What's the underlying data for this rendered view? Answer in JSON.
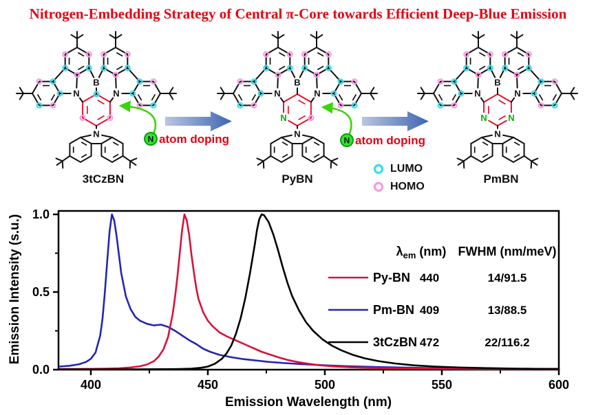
{
  "title": "Nitrogen-Embedding Strategy of Central π-Core towards Efficient Deep-Blue Emission",
  "colors": {
    "title_red": "#e60012",
    "ring_red": "#e8112d",
    "lumo_cyan": "#33dfee",
    "homo_pink": "#f79be0",
    "doped_n_green": "#00b400",
    "arrow_green": "#3bd40a",
    "doping_circle_fill": "#2fe52f",
    "doping_circle_edge": "#0c9b0c",
    "big_arrow_light": "#b9c6e0",
    "big_arrow_dark": "#3e66b3",
    "bond_black": "#111111"
  },
  "scheme": {
    "molecules": [
      {
        "name": "3tCzBN",
        "central_n_count": 0
      },
      {
        "name": "PyBN",
        "central_n_count": 1
      },
      {
        "name": "PmBN",
        "central_n_count": 2
      }
    ],
    "atom_symbols": {
      "boron": "B",
      "nitrogen": "N"
    },
    "doping_label": {
      "atom_symbol": "N",
      "text": "atom doping"
    },
    "orbital_legend": [
      {
        "label": "LUMO",
        "color": "#33dfee"
      },
      {
        "label": "HOMO",
        "color": "#f79be0"
      }
    ]
  },
  "chart_data": {
    "type": "line",
    "title": "",
    "xlabel": "Emission Wavelength (nm)",
    "ylabel": "Emission Intensity (s.u.)",
    "xlim": [
      386,
      600
    ],
    "ylim": [
      0,
      1.0
    ],
    "x_ticks": [
      400,
      450,
      500,
      550,
      600
    ],
    "x_tick_labels": [
      "400",
      "450",
      "500",
      "550",
      "600"
    ],
    "x_minor_ticks": [
      425,
      475,
      525,
      575
    ],
    "y_ticks": [
      0.0,
      0.5,
      1.0
    ],
    "y_tick_labels": [
      "0.0",
      "0.5",
      "1.0"
    ],
    "y_minor_ticks": [
      0.25,
      0.75
    ],
    "grid": false,
    "legend_position": "inside-right",
    "legend": {
      "lambda_symbol": "λ",
      "lambda_sub": "em",
      "lambda_unit": " (nm)",
      "fwhm_header": "FWHM (nm/meV)",
      "rows": [
        {
          "name": "Py-BN",
          "lambda_em": "440",
          "fwhm": "14/91.5",
          "color": "#d9113a"
        },
        {
          "name": "Pm-BN",
          "lambda_em": "409",
          "fwhm": "13/88.5",
          "color": "#2424b4"
        },
        {
          "name": "3tCzBN",
          "lambda_em": "472",
          "fwhm": "22/116.2",
          "color": "#000000"
        }
      ]
    },
    "series": [
      {
        "name": "Pm-BN",
        "color": "#2424b4",
        "peak_nm": 409,
        "fwhm_nm": 13,
        "points": [
          [
            386,
            0.02
          ],
          [
            391,
            0.025
          ],
          [
            395,
            0.035
          ],
          [
            398,
            0.05
          ],
          [
            400,
            0.07
          ],
          [
            402,
            0.11
          ],
          [
            404,
            0.22
          ],
          [
            405,
            0.33
          ],
          [
            406,
            0.5
          ],
          [
            407,
            0.7
          ],
          [
            408,
            0.89
          ],
          [
            409,
            1.0
          ],
          [
            410,
            0.96
          ],
          [
            411,
            0.86
          ],
          [
            412,
            0.74
          ],
          [
            413,
            0.62
          ],
          [
            415,
            0.47
          ],
          [
            417,
            0.39
          ],
          [
            419,
            0.34
          ],
          [
            421,
            0.315
          ],
          [
            424,
            0.295
          ],
          [
            427,
            0.285
          ],
          [
            430,
            0.29
          ],
          [
            433,
            0.275
          ],
          [
            436,
            0.25
          ],
          [
            439,
            0.22
          ],
          [
            442,
            0.19
          ],
          [
            445,
            0.165
          ],
          [
            448,
            0.135
          ],
          [
            451,
            0.115
          ],
          [
            455,
            0.095
          ],
          [
            460,
            0.08
          ],
          [
            465,
            0.068
          ],
          [
            470,
            0.06
          ],
          [
            476,
            0.05
          ],
          [
            483,
            0.042
          ],
          [
            490,
            0.036
          ],
          [
            500,
            0.028
          ],
          [
            510,
            0.022
          ],
          [
            522,
            0.017
          ],
          [
            535,
            0.013
          ],
          [
            550,
            0.009
          ],
          [
            565,
            0.007
          ],
          [
            582,
            0.005
          ],
          [
            600,
            0.004
          ]
        ]
      },
      {
        "name": "Py-BN",
        "color": "#d9113a",
        "peak_nm": 440,
        "fwhm_nm": 14,
        "points": [
          [
            386,
            0.004
          ],
          [
            398,
            0.005
          ],
          [
            406,
            0.006
          ],
          [
            412,
            0.009
          ],
          [
            417,
            0.014
          ],
          [
            421,
            0.022
          ],
          [
            424,
            0.033
          ],
          [
            427,
            0.055
          ],
          [
            429,
            0.085
          ],
          [
            431,
            0.13
          ],
          [
            433,
            0.21
          ],
          [
            435,
            0.36
          ],
          [
            436,
            0.47
          ],
          [
            437,
            0.6
          ],
          [
            438,
            0.75
          ],
          [
            439,
            0.9
          ],
          [
            440,
            1.0
          ],
          [
            441,
            0.96
          ],
          [
            442,
            0.87
          ],
          [
            443,
            0.74
          ],
          [
            444,
            0.63
          ],
          [
            445,
            0.53
          ],
          [
            446,
            0.455
          ],
          [
            448,
            0.37
          ],
          [
            450,
            0.315
          ],
          [
            452,
            0.28
          ],
          [
            455,
            0.24
          ],
          [
            458,
            0.215
          ],
          [
            461,
            0.195
          ],
          [
            464,
            0.175
          ],
          [
            467,
            0.155
          ],
          [
            470,
            0.135
          ],
          [
            473,
            0.115
          ],
          [
            476,
            0.1
          ],
          [
            480,
            0.08
          ],
          [
            484,
            0.063
          ],
          [
            488,
            0.05
          ],
          [
            493,
            0.038
          ],
          [
            498,
            0.028
          ],
          [
            504,
            0.021
          ],
          [
            511,
            0.015
          ],
          [
            520,
            0.011
          ],
          [
            532,
            0.008
          ],
          [
            548,
            0.006
          ],
          [
            565,
            0.004
          ],
          [
            582,
            0.0035
          ],
          [
            600,
            0.003
          ]
        ]
      },
      {
        "name": "3tCzBN",
        "color": "#000000",
        "peak_nm": 472,
        "fwhm_nm": 22,
        "points": [
          [
            386,
            0.002
          ],
          [
            415,
            0.002
          ],
          [
            430,
            0.003
          ],
          [
            438,
            0.004
          ],
          [
            443,
            0.006
          ],
          [
            447,
            0.012
          ],
          [
            450,
            0.02
          ],
          [
            453,
            0.038
          ],
          [
            456,
            0.07
          ],
          [
            458,
            0.105
          ],
          [
            460,
            0.155
          ],
          [
            462,
            0.23
          ],
          [
            464,
            0.33
          ],
          [
            466,
            0.46
          ],
          [
            468,
            0.62
          ],
          [
            470,
            0.8
          ],
          [
            471,
            0.9
          ],
          [
            472,
            0.97
          ],
          [
            473,
            1.0
          ],
          [
            474,
            0.995
          ],
          [
            476,
            0.95
          ],
          [
            478,
            0.87
          ],
          [
            480,
            0.77
          ],
          [
            482,
            0.66
          ],
          [
            484,
            0.56
          ],
          [
            486,
            0.475
          ],
          [
            489,
            0.38
          ],
          [
            492,
            0.305
          ],
          [
            495,
            0.25
          ],
          [
            499,
            0.195
          ],
          [
            503,
            0.155
          ],
          [
            507,
            0.125
          ],
          [
            512,
            0.095
          ],
          [
            517,
            0.073
          ],
          [
            523,
            0.055
          ],
          [
            530,
            0.04
          ],
          [
            538,
            0.028
          ],
          [
            547,
            0.02
          ],
          [
            557,
            0.014
          ],
          [
            568,
            0.01
          ],
          [
            580,
            0.007
          ],
          [
            590,
            0.0055
          ],
          [
            600,
            0.005
          ]
        ]
      }
    ]
  }
}
